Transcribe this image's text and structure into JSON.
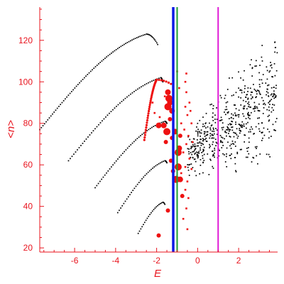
{
  "chart_data": {
    "type": "scatter",
    "xlabel": "E",
    "ylabel": "<n>",
    "xlim": [
      -7.7,
      3.9
    ],
    "ylim": [
      18,
      136
    ],
    "xticks": [
      -6,
      -4,
      -2,
      0,
      2
    ],
    "yticks": [
      20,
      40,
      60,
      80,
      100,
      120
    ],
    "grid": false,
    "colors": {
      "axis": "#e8141e",
      "small_points": "#000000",
      "large_points": "#ee1111",
      "line_blue": "#0a18e6",
      "line_green": "#1f9e2f",
      "line_magenta": "#e01ad6"
    },
    "vertical_lines": [
      {
        "x": -1.19,
        "color": "#0a18e6",
        "width": 3.5
      },
      {
        "x": -1.0,
        "color": "#1f9e2f",
        "width": 2
      },
      {
        "x": 1.0,
        "color": "#e01ad6",
        "width": 2
      }
    ],
    "curves": [
      {
        "x_start": -7.7,
        "y_start": 77,
        "x_peak": -2.5,
        "y_peak": 123,
        "x_end": -1.95,
        "y_end": 118,
        "count": 80
      },
      {
        "x_start": -6.3,
        "y_start": 62,
        "x_peak": -1.8,
        "y_peak": 102,
        "x_end": -1.7,
        "y_end": 100,
        "count": 62
      },
      {
        "x_start": -5.0,
        "y_start": 49,
        "x_peak": -1.6,
        "y_peak": 81,
        "x_end": -1.5,
        "y_end": 80,
        "count": 52
      },
      {
        "x_start": -3.9,
        "y_start": 37,
        "x_peak": -1.6,
        "y_peak": 62,
        "x_end": -1.5,
        "y_end": 61,
        "count": 38
      },
      {
        "x_start": -2.9,
        "y_start": 27,
        "x_peak": -1.7,
        "y_peak": 42,
        "x_end": -1.6,
        "y_end": 41,
        "count": 24
      }
    ],
    "red_arc": {
      "x_start": -2.6,
      "y_start": 72,
      "x_peak": -2.0,
      "y_peak": 101,
      "x_end": -1.3,
      "y_end": 99,
      "count": 40
    },
    "large_points": [
      {
        "x": -1.45,
        "y": 95,
        "s": 4
      },
      {
        "x": -1.4,
        "y": 92,
        "s": 5
      },
      {
        "x": -1.35,
        "y": 90,
        "s": 4
      },
      {
        "x": -1.45,
        "y": 88,
        "s": 5
      },
      {
        "x": -1.25,
        "y": 86,
        "s": 4
      },
      {
        "x": -1.35,
        "y": 82,
        "s": 3
      },
      {
        "x": -1.9,
        "y": 79,
        "s": 4
      },
      {
        "x": -1.65,
        "y": 79,
        "s": 4
      },
      {
        "x": -1.5,
        "y": 76,
        "s": 5
      },
      {
        "x": -1.1,
        "y": 76,
        "s": 4
      },
      {
        "x": -1.25,
        "y": 73,
        "s": 3
      },
      {
        "x": -1.55,
        "y": 71,
        "s": 3
      },
      {
        "x": -0.85,
        "y": 74,
        "s": 3
      },
      {
        "x": -0.9,
        "y": 68,
        "s": 4
      },
      {
        "x": -0.95,
        "y": 66,
        "s": 5
      },
      {
        "x": -1.3,
        "y": 62,
        "s": 3
      },
      {
        "x": -0.95,
        "y": 59,
        "s": 5
      },
      {
        "x": -1.2,
        "y": 57,
        "s": 3
      },
      {
        "x": -1.05,
        "y": 53,
        "s": 5
      },
      {
        "x": -0.85,
        "y": 53,
        "s": 4
      },
      {
        "x": -0.75,
        "y": 45,
        "s": 3
      },
      {
        "x": -1.45,
        "y": 38,
        "s": 3
      },
      {
        "x": -1.9,
        "y": 26,
        "s": 3
      }
    ],
    "small_red_points": [
      {
        "x": -1.0,
        "y": 105
      },
      {
        "x": -0.55,
        "y": 104
      },
      {
        "x": -0.6,
        "y": 100
      },
      {
        "x": -0.55,
        "y": 95
      },
      {
        "x": -0.9,
        "y": 97
      },
      {
        "x": -0.4,
        "y": 90
      },
      {
        "x": -0.6,
        "y": 88
      },
      {
        "x": -0.35,
        "y": 86
      },
      {
        "x": -0.5,
        "y": 84
      },
      {
        "x": -0.8,
        "y": 80
      },
      {
        "x": -0.65,
        "y": 77
      },
      {
        "x": -0.45,
        "y": 74
      },
      {
        "x": -0.55,
        "y": 70
      },
      {
        "x": -0.7,
        "y": 66
      },
      {
        "x": -0.4,
        "y": 63
      },
      {
        "x": -0.6,
        "y": 59
      },
      {
        "x": -0.8,
        "y": 56
      },
      {
        "x": -0.5,
        "y": 52
      },
      {
        "x": -0.6,
        "y": 48
      },
      {
        "x": -0.45,
        "y": 44
      },
      {
        "x": -0.55,
        "y": 39
      },
      {
        "x": -0.7,
        "y": 34
      },
      {
        "x": -0.5,
        "y": 29
      },
      {
        "x": -2.1,
        "y": 85
      },
      {
        "x": -1.85,
        "y": 83
      },
      {
        "x": -2.2,
        "y": 90
      },
      {
        "x": -1.6,
        "y": 93
      },
      {
        "x": -0.3,
        "y": 80
      },
      {
        "x": -0.25,
        "y": 71
      },
      {
        "x": -0.3,
        "y": 58
      }
    ],
    "cloud": {
      "count": 560,
      "x_range": [
        -0.5,
        3.9
      ],
      "y_low_at_x_min": 50,
      "y_high_at_x_min": 80,
      "y_low_at_x_max": 55,
      "y_high_at_x_max": 135
    }
  }
}
